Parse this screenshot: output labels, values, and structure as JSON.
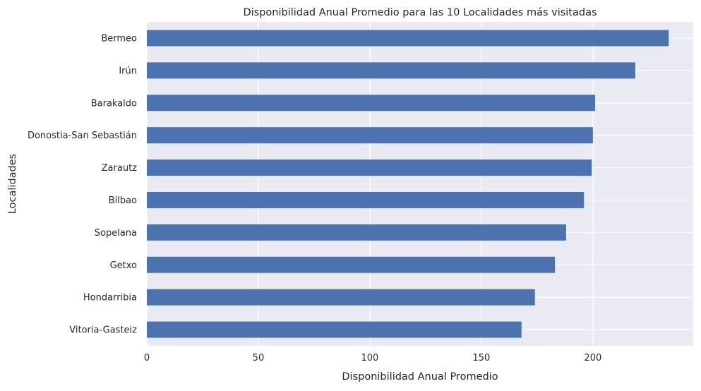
{
  "chart_data": {
    "type": "bar",
    "orientation": "horizontal",
    "title": "Disponibilidad Anual Promedio para las 10 Localidades más visitadas",
    "xlabel": "Disponibilidad Anual Promedio",
    "ylabel": "Localidades",
    "categories": [
      "Bermeo",
      "Irún",
      "Barakaldo",
      "Donostia-San Sebastián",
      "Zarautz",
      "Bilbao",
      "Sopelana",
      "Getxo",
      "Hondarribia",
      "Vitoria-Gasteiz"
    ],
    "values": [
      234,
      219,
      201,
      200,
      199.5,
      196,
      188,
      183,
      174,
      168
    ],
    "xlim": [
      0,
      245
    ],
    "xticks": [
      0,
      50,
      100,
      150,
      200
    ],
    "grid": true,
    "colors": {
      "bar": "#4c72b0",
      "background": "#eaeaf2",
      "grid": "#ffffff"
    }
  }
}
